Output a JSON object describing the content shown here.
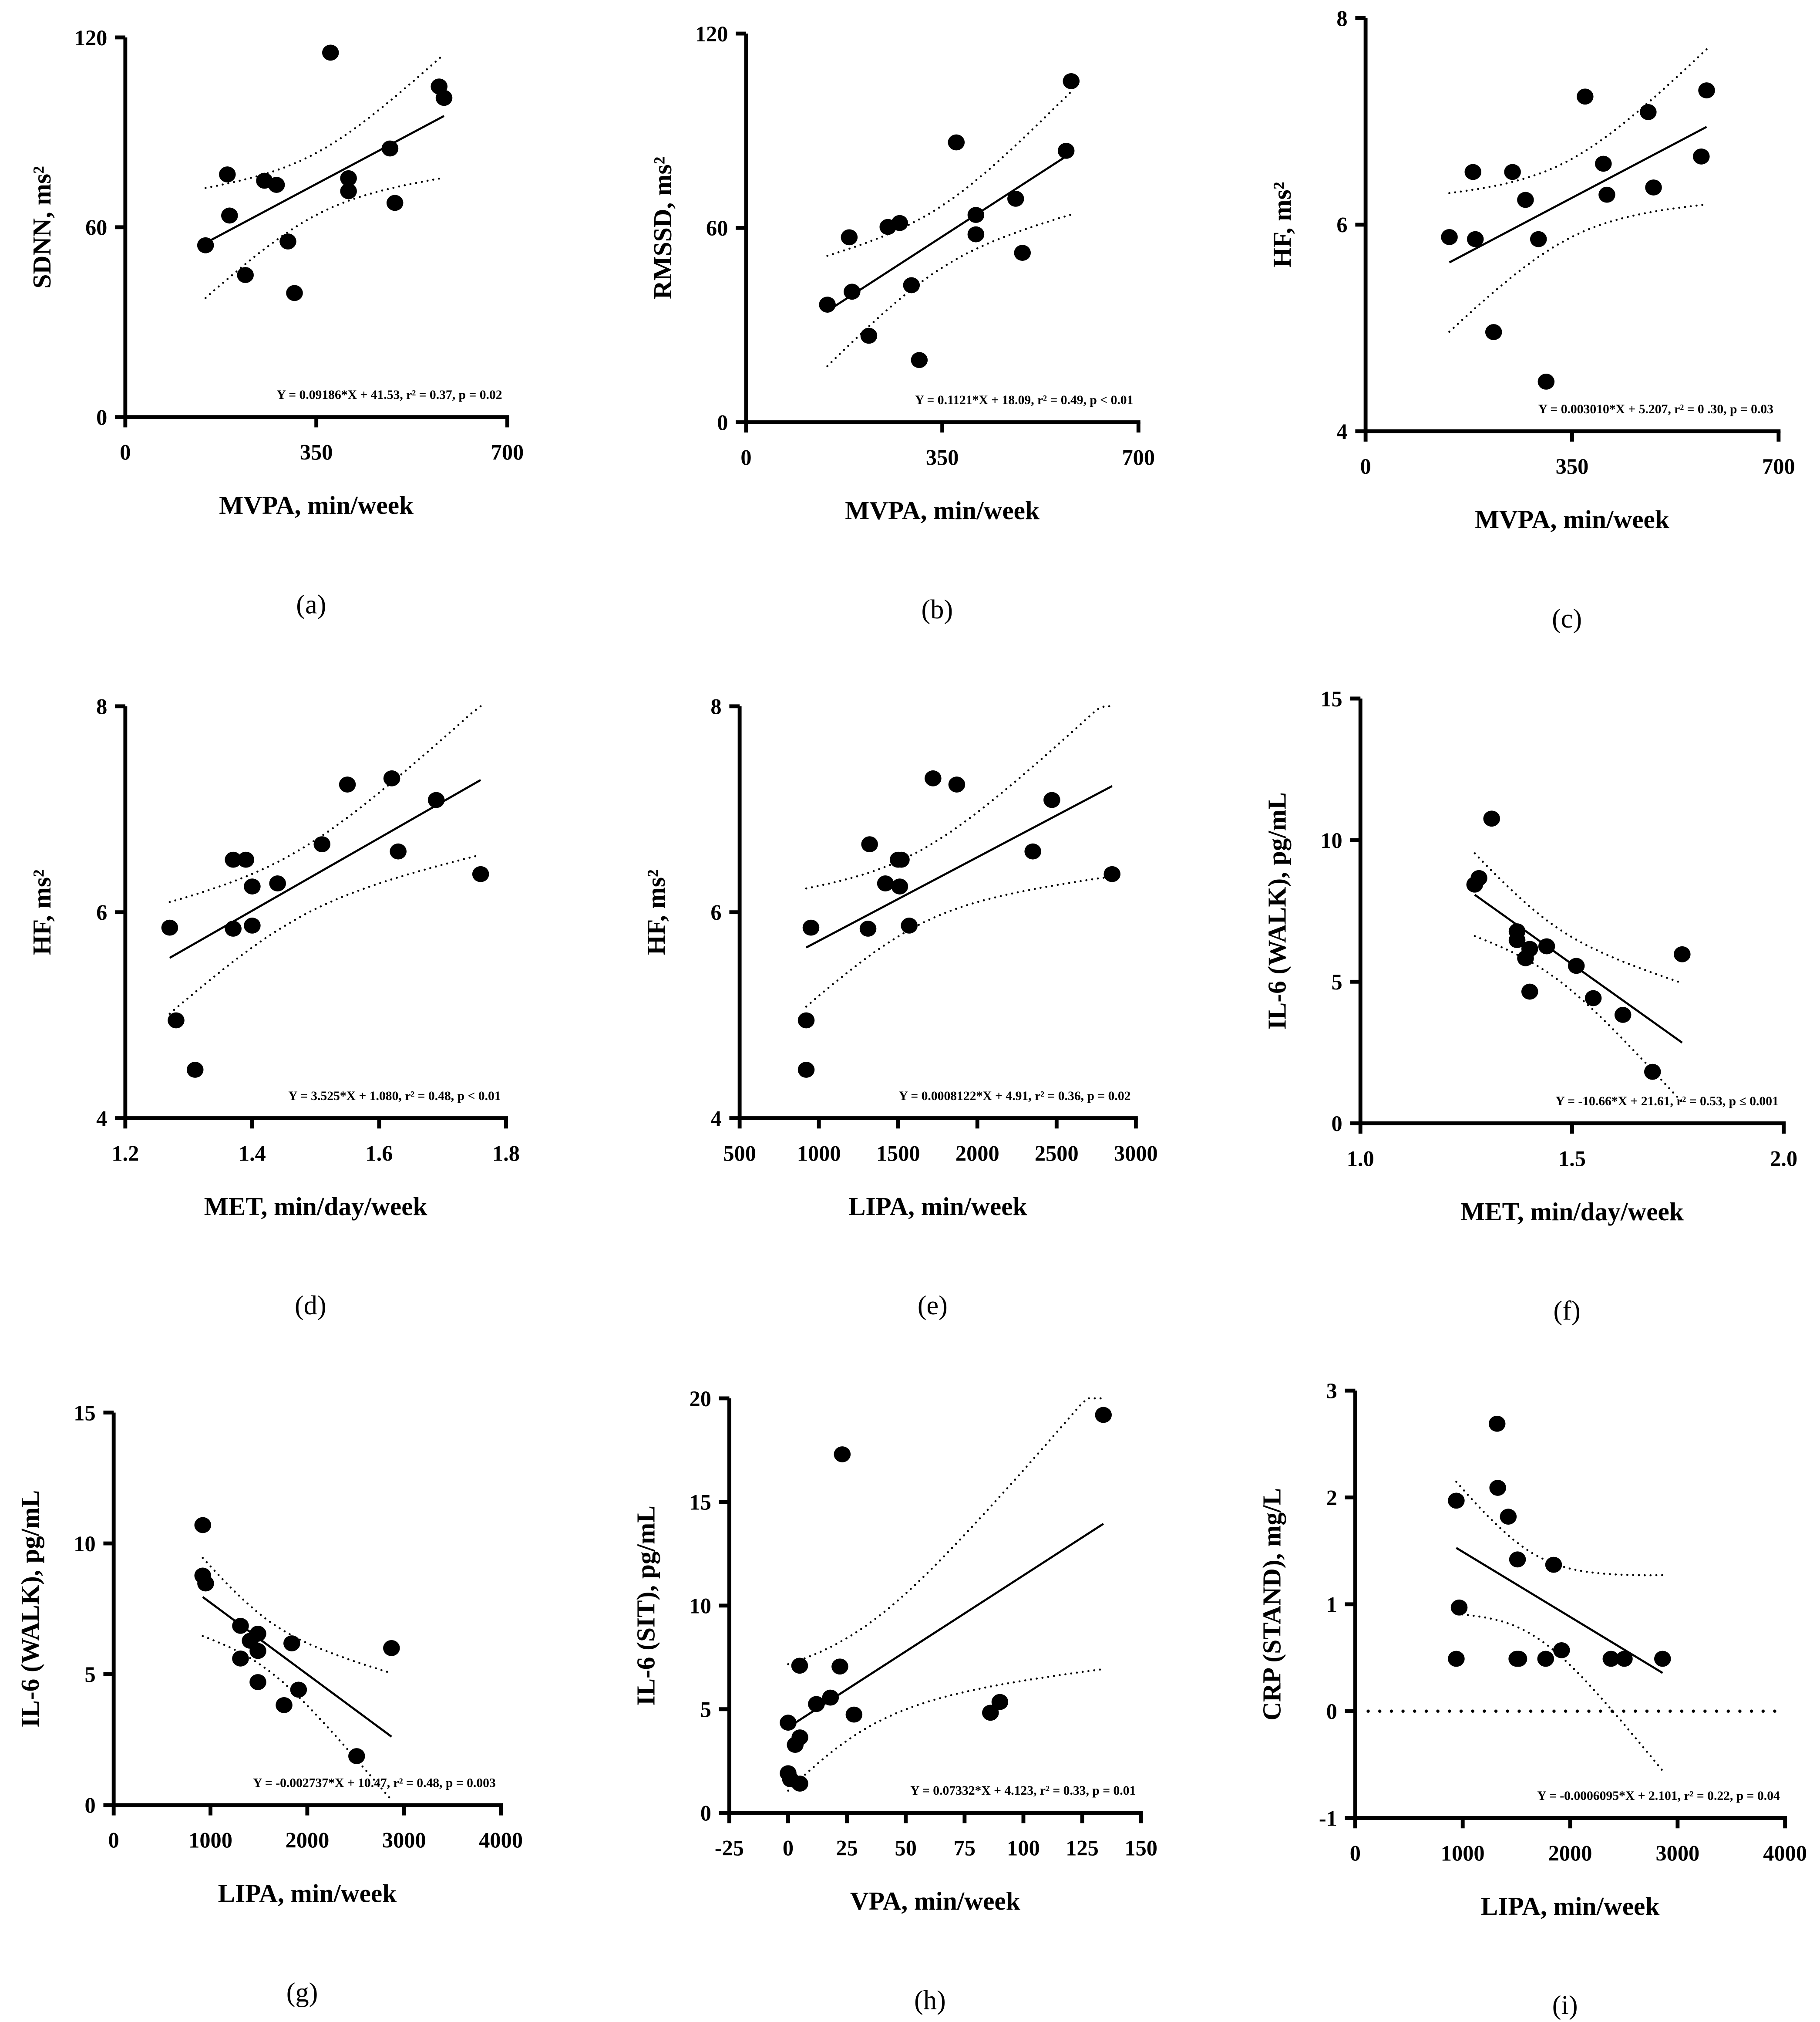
{
  "chart_data": [
    {
      "type": "scatter",
      "panel": "(a)",
      "xlabel": "MVPA, min/week",
      "ylabel": "SDNN, ms²",
      "xlim": [
        0,
        700
      ],
      "ylim": [
        0,
        120
      ],
      "xtick_labels": [
        "0",
        "350",
        "700"
      ],
      "ytick_labels": [
        "0",
        "60",
        "120"
      ],
      "equation": "Y = 0.09186*X + 41.53, r² = 0.37, p = 0.02",
      "slope": 0.09186,
      "intercept": 41.53,
      "x": [
        147,
        187,
        191,
        220,
        255,
        277,
        298,
        310,
        376,
        409,
        409,
        485,
        494,
        575,
        584
      ],
      "y": [
        54.3,
        76.7,
        63.7,
        44.9,
        74.7,
        73.4,
        55.5,
        39.2,
        115.2,
        75.5,
        71.4,
        84.9,
        67.7,
        104.5,
        100.9
      ]
    },
    {
      "type": "scatter",
      "panel": "(b)",
      "xlabel": "MVPA, min/week",
      "ylabel": "RMSSD, ms²",
      "xlim": [
        0,
        700
      ],
      "ylim": [
        0,
        120
      ],
      "xtick_labels": [
        "0",
        "350",
        "700"
      ],
      "ytick_labels": [
        "0",
        "60",
        "120"
      ],
      "equation": "Y = 0.1121*X + 18.09, r² = 0.49, p  < 0.01",
      "slope": 0.1121,
      "intercept": 18.09,
      "x": [
        145,
        184,
        189,
        219,
        253,
        274,
        295,
        309,
        375,
        410,
        410,
        481,
        493,
        571,
        580
      ],
      "y": [
        36.3,
        57.1,
        40.3,
        26.7,
        60.3,
        61.5,
        42.3,
        19.2,
        86.4,
        64.0,
        58.0,
        69.0,
        52.3,
        83.8,
        105.3
      ]
    },
    {
      "type": "scatter",
      "panel": "(c)",
      "xlabel": "MVPA, min/week",
      "ylabel": "HF, ms²",
      "xlim": [
        0,
        700
      ],
      "ylim": [
        4,
        8
      ],
      "xtick_labels": [
        "0",
        "350",
        "700"
      ],
      "ytick_labels": [
        "4",
        "6",
        "8"
      ],
      "equation": "Y = 0.003010*X + 5.207, r² = 0 .30, p = 0.03",
      "slope": 0.00301,
      "intercept": 5.207,
      "x": [
        142,
        182,
        186,
        217,
        249,
        271,
        293,
        306,
        372,
        403,
        409,
        479,
        488,
        569,
        578
      ],
      "y": [
        5.88,
        6.51,
        5.86,
        4.96,
        6.51,
        6.24,
        5.86,
        4.48,
        7.24,
        6.59,
        6.29,
        7.09,
        6.36,
        6.66,
        7.3
      ]
    },
    {
      "type": "scatter",
      "panel": "(d)",
      "xlabel": "MET, min/day/week",
      "ylabel": "HF, ms²",
      "xlim": [
        1.2,
        1.8
      ],
      "ylim": [
        4,
        8
      ],
      "xtick_labels": [
        "1.2",
        "1.4",
        "1.6",
        "1.8"
      ],
      "ytick_labels": [
        "4",
        "6",
        "8"
      ],
      "equation": "Y = 3.525*X + 1.080, r² = 0.48, p < 0.01",
      "slope": 3.525,
      "intercept": 1.08,
      "x": [
        1.27,
        1.28,
        1.31,
        1.37,
        1.37,
        1.39,
        1.4,
        1.4,
        1.44,
        1.51,
        1.55,
        1.62,
        1.63,
        1.69,
        1.76
      ],
      "y": [
        5.85,
        4.95,
        4.47,
        6.51,
        5.84,
        6.51,
        6.25,
        5.87,
        6.28,
        6.66,
        7.24,
        7.3,
        6.59,
        7.09,
        6.37
      ]
    },
    {
      "type": "scatter",
      "panel": "(e)",
      "xlabel": "LIPA, min/week",
      "ylabel": "HF, ms²",
      "xlim": [
        500,
        3000
      ],
      "ylim": [
        4,
        8
      ],
      "xtick_labels": [
        "500",
        "1000",
        "1500",
        "2000",
        "2500",
        "3000"
      ],
      "ytick_labels": [
        "4",
        "6",
        "8"
      ],
      "equation": "Y = 0.0008122*X + 4.91, r² = 0.36, p = 0.02",
      "slope": 0.0008122,
      "intercept": 4.91,
      "x": [
        950,
        920,
        920,
        1320,
        1310,
        1420,
        1500,
        1520,
        1510,
        1570,
        1720,
        1870,
        2350,
        2470,
        2850
      ],
      "y": [
        5.85,
        4.95,
        4.47,
        6.66,
        5.84,
        6.28,
        6.51,
        6.51,
        6.25,
        5.87,
        7.3,
        7.24,
        6.59,
        7.09,
        6.37
      ]
    },
    {
      "type": "scatter",
      "panel": "(f)",
      "xlabel": "MET, min/day/week",
      "ylabel": "IL-6 (WALK), pg/mL",
      "xlim": [
        1.0,
        2.0
      ],
      "ylim": [
        0,
        15
      ],
      "xtick_labels": [
        "1.0",
        "1.5",
        "2.0"
      ],
      "ytick_labels": [
        "0",
        "5",
        "10",
        "15"
      ],
      "equation": "Y = -10.66*X + 21.61, r² = 0.53, p ≤ 0.001",
      "slope": -10.66,
      "intercept": 21.61,
      "x": [
        1.27,
        1.28,
        1.31,
        1.37,
        1.37,
        1.39,
        1.4,
        1.4,
        1.44,
        1.51,
        1.55,
        1.62,
        1.69,
        1.76
      ],
      "y": [
        8.43,
        8.66,
        10.76,
        6.78,
        6.47,
        5.83,
        6.16,
        4.65,
        6.25,
        5.56,
        4.42,
        3.83,
        1.82,
        5.97
      ]
    },
    {
      "type": "scatter",
      "panel": "(g)",
      "xlabel": "LIPA, min/week",
      "ylabel": "IL-6 (WALK), pg/mL",
      "xlim": [
        0,
        4000
      ],
      "ylim": [
        0,
        15
      ],
      "xtick_labels": [
        "0",
        "1000",
        "2000",
        "3000",
        "4000"
      ],
      "ytick_labels": [
        "0",
        "5",
        "10",
        "15"
      ],
      "equation": "Y = -0.002737*X + 10.47, r² =  0.48, p = 0.003",
      "slope": -0.002737,
      "intercept": 10.47,
      "x": [
        920,
        920,
        950,
        1310,
        1310,
        1410,
        1490,
        1490,
        1490,
        1760,
        1840,
        1910,
        2510,
        2870
      ],
      "y": [
        10.7,
        8.77,
        8.47,
        6.85,
        5.6,
        6.28,
        6.55,
        5.89,
        4.7,
        3.82,
        6.18,
        4.41,
        1.87,
        6.0
      ]
    },
    {
      "type": "scatter",
      "panel": "(h)",
      "xlabel": "VPA, min/week",
      "ylabel": "IL-6 (SIT), pg/mL",
      "xlim": [
        -25,
        150
      ],
      "ylim": [
        0,
        20
      ],
      "xtick_labels": [
        "-25",
        "0",
        "25",
        "50",
        "75",
        "100",
        "125",
        "150"
      ],
      "ytick_labels": [
        "0",
        "5",
        "10",
        "15",
        "20"
      ],
      "equation": "Y = 0.07332*X + 4.123, r² = 0.33, p  = 0.01",
      "slope": 0.07332,
      "intercept": 4.123,
      "x": [
        134,
        23,
        4.9,
        22,
        12,
        18,
        28,
        0,
        5,
        3,
        0,
        1,
        5,
        86,
        90
      ],
      "y": [
        19.2,
        17.3,
        7.1,
        7.06,
        5.25,
        5.56,
        4.74,
        4.35,
        3.64,
        3.28,
        1.91,
        1.62,
        1.41,
        4.83,
        5.35
      ]
    },
    {
      "type": "scatter",
      "panel": "(i)",
      "xlabel": "LIPA, min/week",
      "ylabel": "CRP (STAND), mg/L",
      "xlim": [
        0,
        4000
      ],
      "ylim": [
        -1,
        3
      ],
      "xtick_labels": [
        "0",
        "1000",
        "2000",
        "3000",
        "4000"
      ],
      "ytick_labels": [
        "-1",
        "0",
        "1",
        "2",
        "3"
      ],
      "equation": "Y = -0.0006095*X + 2.101, r² = 0.22, p  = 0.04",
      "slope": -0.0006095,
      "intercept": 2.101,
      "reference_line_y": 0,
      "x": [
        940,
        967,
        940,
        1320,
        1326,
        1424,
        1510,
        1846,
        1504,
        1522,
        1772,
        1920,
        2380,
        2504,
        2860
      ],
      "y": [
        1.97,
        0.97,
        0.49,
        2.69,
        2.09,
        1.82,
        1.42,
        1.37,
        0.49,
        0.49,
        0.49,
        0.57,
        0.49,
        0.49,
        0.49
      ]
    }
  ]
}
